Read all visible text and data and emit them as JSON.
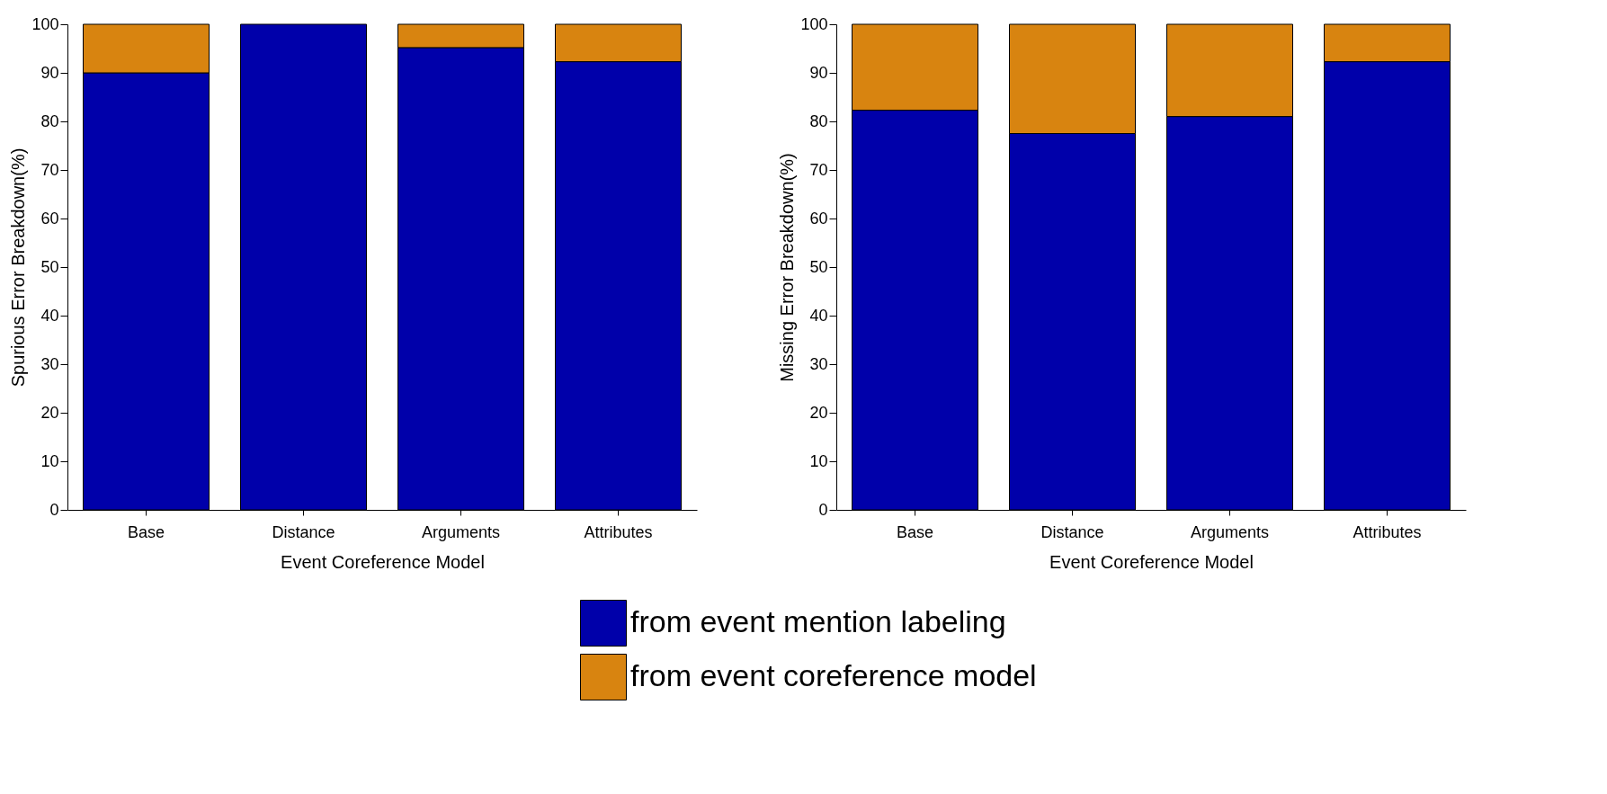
{
  "chart_data": [
    {
      "type": "bar",
      "stacked": true,
      "xlabel": "Event Coreference Model",
      "ylabel": "Spurious Error Breakdown(%)",
      "categories": [
        "Base",
        "Distance",
        "Arguments",
        "Attributes"
      ],
      "ylim": [
        0,
        100
      ],
      "yticks": [
        0,
        10,
        20,
        30,
        40,
        50,
        60,
        70,
        80,
        90,
        100
      ],
      "grid": false,
      "legend": "bottom",
      "series": [
        {
          "name": "from event mention labeling",
          "color": "#0000aa",
          "values": [
            90,
            100,
            95.2,
            92.3
          ]
        },
        {
          "name": "from event coreference model",
          "color": "#d88410",
          "values": [
            10,
            0,
            4.8,
            7.7
          ]
        }
      ]
    },
    {
      "type": "bar",
      "stacked": true,
      "xlabel": "Event Coreference Model",
      "ylabel": "Missing Error Breakdown(%)",
      "categories": [
        "Base",
        "Distance",
        "Arguments",
        "Attributes"
      ],
      "ylim": [
        0,
        100
      ],
      "yticks": [
        0,
        10,
        20,
        30,
        40,
        50,
        60,
        70,
        80,
        90,
        100
      ],
      "grid": false,
      "legend": "bottom",
      "series": [
        {
          "name": "from event mention labeling",
          "color": "#0000aa",
          "values": [
            82.3,
            77.5,
            81,
            92.3
          ]
        },
        {
          "name": "from event coreference model",
          "color": "#d88410",
          "values": [
            17.7,
            22.5,
            19,
            7.7
          ]
        }
      ]
    }
  ]
}
